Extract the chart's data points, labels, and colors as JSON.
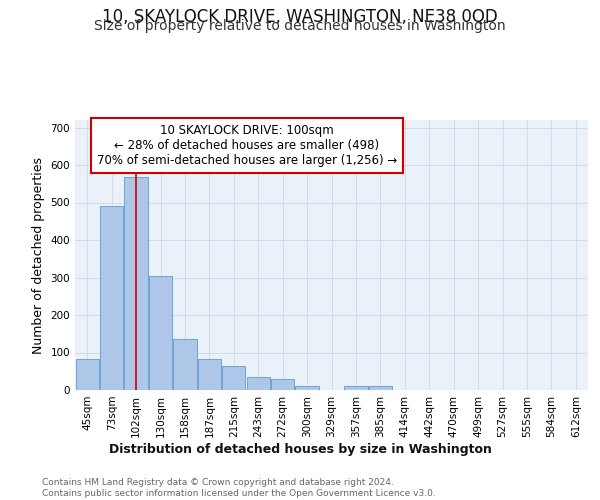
{
  "title": "10, SKAYLOCK DRIVE, WASHINGTON, NE38 0QD",
  "subtitle": "Size of property relative to detached houses in Washington",
  "xlabel": "Distribution of detached houses by size in Washington",
  "ylabel": "Number of detached properties",
  "bar_labels": [
    "45sqm",
    "73sqm",
    "102sqm",
    "130sqm",
    "158sqm",
    "187sqm",
    "215sqm",
    "243sqm",
    "272sqm",
    "300sqm",
    "329sqm",
    "357sqm",
    "385sqm",
    "414sqm",
    "442sqm",
    "470sqm",
    "499sqm",
    "527sqm",
    "555sqm",
    "584sqm",
    "612sqm"
  ],
  "bar_values": [
    83,
    490,
    568,
    305,
    137,
    84,
    65,
    35,
    29,
    11,
    0,
    11,
    12,
    0,
    0,
    0,
    0,
    0,
    0,
    0,
    0
  ],
  "bar_color": "#aec6e8",
  "bar_edge_color": "#5b9bd5",
  "vline_x": 2,
  "vline_color": "#cc0000",
  "annotation_text": "10 SKAYLOCK DRIVE: 100sqm\n← 28% of detached houses are smaller (498)\n70% of semi-detached houses are larger (1,256) →",
  "annotation_box_color": "#ffffff",
  "annotation_box_edge_color": "#cc0000",
  "ylim": [
    0,
    720
  ],
  "yticks": [
    0,
    100,
    200,
    300,
    400,
    500,
    600,
    700
  ],
  "grid_color": "#d0dce8",
  "background_color": "#eaf1f8",
  "footer_text": "Contains HM Land Registry data © Crown copyright and database right 2024.\nContains public sector information licensed under the Open Government Licence v3.0.",
  "title_fontsize": 12,
  "subtitle_fontsize": 10,
  "xlabel_fontsize": 9,
  "ylabel_fontsize": 9,
  "tick_fontsize": 7.5,
  "annotation_fontsize": 8.5,
  "footer_fontsize": 6.5
}
